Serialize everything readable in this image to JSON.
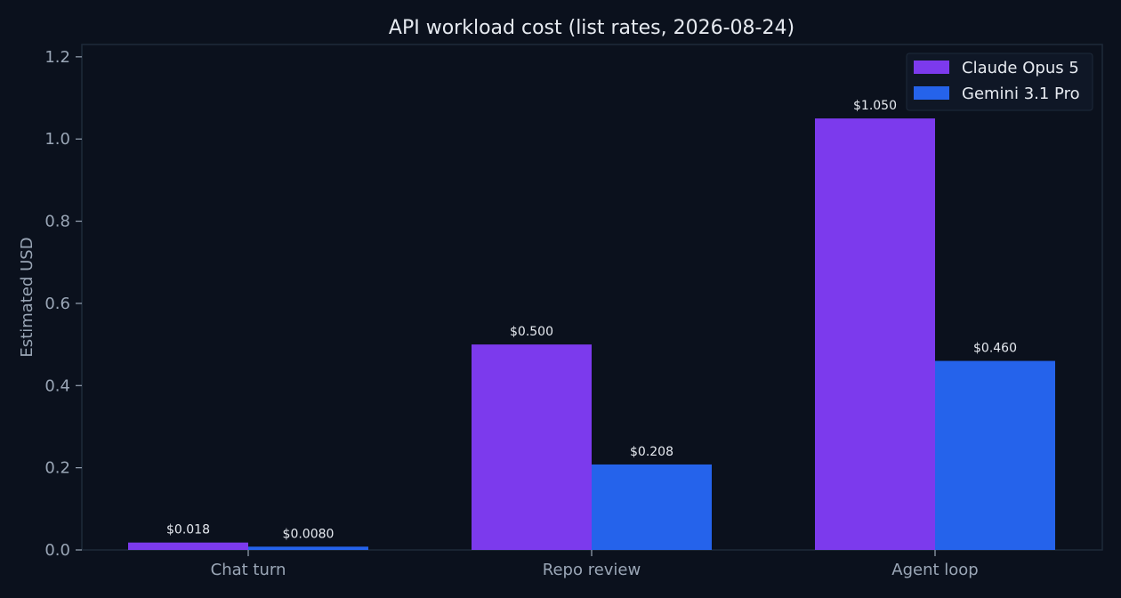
{
  "chart_data": {
    "type": "bar",
    "title": "API workload cost (list rates, 2026-08-24)",
    "xlabel": "",
    "ylabel": "Estimated USD",
    "categories": [
      "Chat turn",
      "Repo review",
      "Agent loop"
    ],
    "series": [
      {
        "name": "Claude Opus 5",
        "color": "#7c3aed",
        "values": [
          0.018,
          0.5,
          1.05
        ],
        "labels": [
          "$0.018",
          "$0.500",
          "$1.050"
        ]
      },
      {
        "name": "Gemini 3.1 Pro",
        "color": "#2563eb",
        "values": [
          0.008,
          0.208,
          0.46
        ],
        "labels": [
          "$0.0080",
          "$0.208",
          "$0.460"
        ]
      }
    ],
    "ylim": [
      0,
      1.23
    ],
    "yticks": [
      0.0,
      0.2,
      0.4,
      0.6,
      0.8,
      1.0,
      1.2
    ],
    "ytick_labels": [
      "0.0",
      "0.2",
      "0.4",
      "0.6",
      "0.8",
      "1.0",
      "1.2"
    ],
    "grid": false,
    "legend_position": "top-right"
  }
}
